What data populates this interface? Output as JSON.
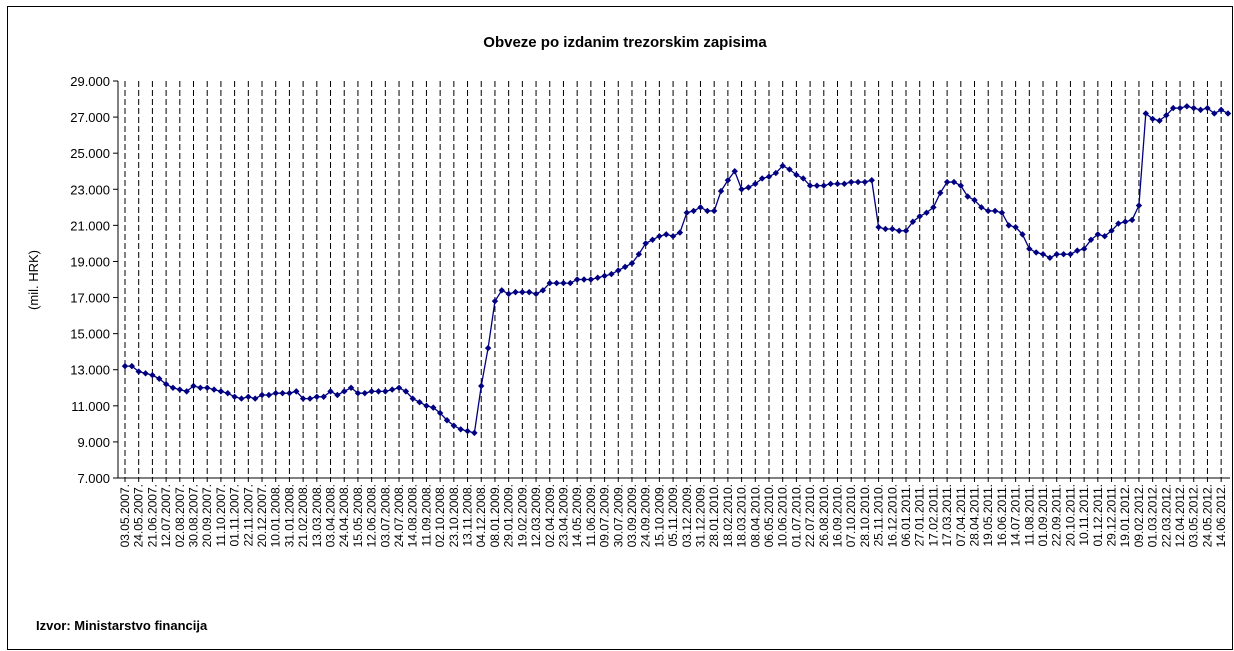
{
  "chart_data": {
    "type": "line",
    "title": "Obveze po izdanim trezorskim zapisima",
    "y_label": "(mil. HRK)",
    "source": "Izvor: Ministarstvo financija",
    "color": "#000080",
    "grid": true,
    "categories": [
      "03.05.2007.",
      null,
      "24.05.2007.",
      null,
      "21.06.2007.",
      null,
      "12.07.2007.",
      null,
      "02.08.2007.",
      null,
      "30.08.2007.",
      null,
      "20.09.2007.",
      null,
      "11.10.2007.",
      null,
      "01.11.2007.",
      null,
      "22.11.2007.",
      null,
      "20.12.2007.",
      null,
      "10.01.2008.",
      null,
      "31.01.2008.",
      null,
      "21.02.2008.",
      null,
      "13.03.2008.",
      null,
      "03.04.2008.",
      null,
      "24.04.2008.",
      null,
      "15.05.2008.",
      null,
      "12.06.2008.",
      null,
      "03.07.2008.",
      null,
      "24.07.2008.",
      null,
      "14.08.2008.",
      null,
      "11.09.2008.",
      null,
      "02.10.2008.",
      null,
      "23.10.2008.",
      null,
      "13.11.2008.",
      null,
      "04.12.2008.",
      null,
      "08.01.2009.",
      null,
      "29.01.2009.",
      null,
      "19.02.2009.",
      null,
      "12.03.2009.",
      null,
      "02.04.2009.",
      null,
      "23.04.2009.",
      null,
      "14.05.2009.",
      null,
      "11.06.2009.",
      null,
      "09.07.2009.",
      null,
      "30.07.2009.",
      null,
      "03.09.2009.",
      null,
      "24.09.2009.",
      null,
      "15.10.2009.",
      null,
      "05.11.2009.",
      null,
      "03.12.2009.",
      null,
      "31.12.2009.",
      null,
      "28.01.2010.",
      null,
      "18.02.2010.",
      null,
      "18.03.2010.",
      null,
      "08.04.2010.",
      null,
      "06.05.2010.",
      null,
      "10.06.2010.",
      null,
      "01.07.2010.",
      null,
      "22.07.2010.",
      null,
      "26.08.2010.",
      null,
      "16.09.2010.",
      null,
      "07.10.2010.",
      null,
      "28.10.2010.",
      null,
      "25.11.2010.",
      null,
      "16.12.2010.",
      null,
      "06.01.2011.",
      null,
      "27.01.2011.",
      null,
      "17.02.2011.",
      null,
      "17.03.2011.",
      null,
      "07.04.2011.",
      null,
      "28.04.2011.",
      null,
      "19.05.2011.",
      null,
      "16.06.2011.",
      null,
      "14.07.2011.",
      null,
      "11.08.2011.",
      null,
      "01.09.2011.",
      null,
      "22.09.2011.",
      null,
      "20.10.2011.",
      null,
      "10.11.2011.",
      null,
      "01.12.2011.",
      null,
      "29.12.2011.",
      null,
      "19.01.2012.",
      null,
      "09.02.2012.",
      null,
      "01.03.2012.",
      null,
      "22.03.2012.",
      null,
      "12.04.2012.",
      null,
      "03.05.2012.",
      null,
      "24.05.2012.",
      null,
      "14.06.2012.",
      null
    ],
    "values": [
      13200,
      13200,
      12900,
      12800,
      12700,
      12500,
      12200,
      12000,
      11900,
      11800,
      12100,
      12000,
      12000,
      11900,
      11800,
      11700,
      11500,
      11400,
      11500,
      11400,
      11600,
      11600,
      11700,
      11700,
      11700,
      11800,
      11400,
      11400,
      11500,
      11500,
      11800,
      11600,
      11800,
      12000,
      11700,
      11700,
      11800,
      11800,
      11800,
      11900,
      12000,
      11800,
      11400,
      11200,
      11000,
      10900,
      10600,
      10200,
      9900,
      9700,
      9600,
      9500,
      12100,
      14200,
      16800,
      17400,
      17200,
      17300,
      17300,
      17300,
      17200,
      17400,
      17800,
      17800,
      17800,
      17800,
      18000,
      18000,
      18000,
      18100,
      18200,
      18300,
      18500,
      18700,
      18900,
      19400,
      20000,
      20200,
      20400,
      20500,
      20400,
      20600,
      21700,
      21800,
      22000,
      21800,
      21800,
      22900,
      23500,
      24000,
      23000,
      23100,
      23300,
      23600,
      23700,
      23900,
      24300,
      24100,
      23800,
      23600,
      23200,
      23200,
      23200,
      23300,
      23300,
      23300,
      23400,
      23400,
      23400,
      23500,
      20900,
      20800,
      20800,
      20700,
      20700,
      21200,
      21500,
      21700,
      22000,
      22800,
      23400,
      23400,
      23200,
      22600,
      22400,
      22000,
      21800,
      21800,
      21700,
      21000,
      20900,
      20500,
      19700,
      19500,
      19400,
      19200,
      19400,
      19400,
      19400,
      19600,
      19700,
      20200,
      20500,
      20400,
      20700,
      21100,
      21200,
      21300,
      22100,
      27200,
      26900,
      26800,
      27100,
      27500,
      27500,
      27600,
      27500,
      27400,
      27500,
      27200,
      27400,
      27200
    ],
    "ylim": [
      7000,
      29000
    ],
    "yticks": [
      {
        "value": 7000,
        "label": "7.000"
      },
      {
        "value": 9000,
        "label": "9.000"
      },
      {
        "value": 11000,
        "label": "11.000"
      },
      {
        "value": 13000,
        "label": "13.000"
      },
      {
        "value": 15000,
        "label": "15.000"
      },
      {
        "value": 17000,
        "label": "17.000"
      },
      {
        "value": 19000,
        "label": "19.000"
      },
      {
        "value": 21000,
        "label": "21.000"
      },
      {
        "value": 23000,
        "label": "23.000"
      },
      {
        "value": 25000,
        "label": "25.000"
      },
      {
        "value": 27000,
        "label": "27.000"
      },
      {
        "value": 29000,
        "label": "29.000"
      }
    ]
  }
}
